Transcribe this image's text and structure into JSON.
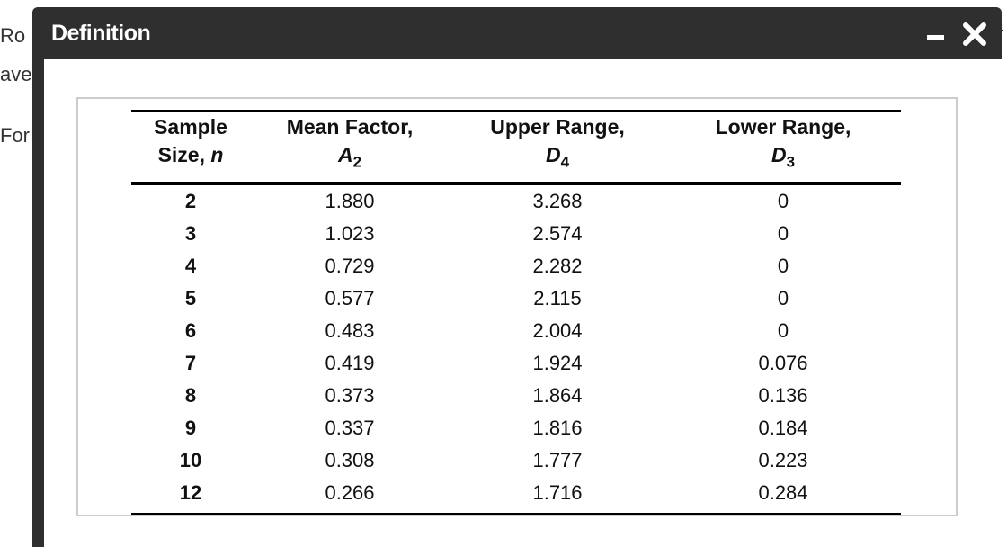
{
  "background": {
    "line1": "Ro",
    "line2": "ave",
    "line3": "For",
    "line1_right": "r"
  },
  "dialog": {
    "title": "Definition",
    "minimize_icon": "minimize-icon",
    "close_icon": "close-icon"
  },
  "table": {
    "headers": [
      {
        "line1": "Sample",
        "line2_text": "Size, ",
        "line2_symbol": "n",
        "line2_sub": ""
      },
      {
        "line1": "Mean Factor,",
        "line2_text": "",
        "line2_symbol": "A",
        "line2_sub": "2"
      },
      {
        "line1": "Upper Range,",
        "line2_text": "",
        "line2_symbol": "D",
        "line2_sub": "4"
      },
      {
        "line1": "Lower Range,",
        "line2_text": "",
        "line2_symbol": "D",
        "line2_sub": "3"
      }
    ],
    "rows": [
      [
        "2",
        "1.880",
        "3.268",
        "0"
      ],
      [
        "3",
        "1.023",
        "2.574",
        "0"
      ],
      [
        "4",
        "0.729",
        "2.282",
        "0"
      ],
      [
        "5",
        "0.577",
        "2.115",
        "0"
      ],
      [
        "6",
        "0.483",
        "2.004",
        "0"
      ],
      [
        "7",
        "0.419",
        "1.924",
        "0.076"
      ],
      [
        "8",
        "0.373",
        "1.864",
        "0.136"
      ],
      [
        "9",
        "0.337",
        "1.816",
        "0.184"
      ],
      [
        "10",
        "0.308",
        "1.777",
        "0.223"
      ],
      [
        "12",
        "0.266",
        "1.716",
        "0.284"
      ]
    ]
  },
  "colors": {
    "titlebar": "#2f2f2f",
    "title_text": "#ffffff",
    "frame_border": "#cccccc"
  }
}
